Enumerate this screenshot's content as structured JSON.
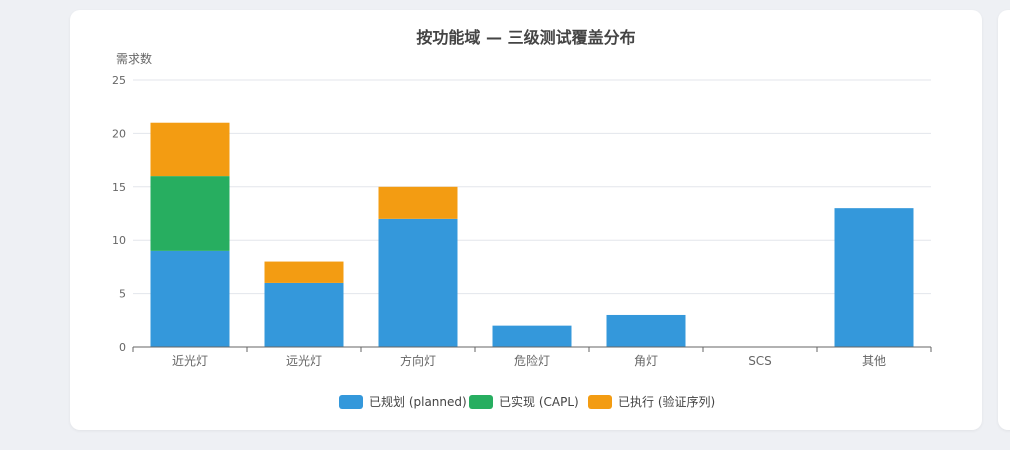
{
  "chart_data": {
    "type": "bar",
    "stacked": true,
    "title": "按功能域 — 三级测试覆盖分布",
    "ylabel": "需求数",
    "xlabel": "",
    "ylim": [
      0,
      25
    ],
    "yticks": [
      0,
      5,
      10,
      15,
      20,
      25
    ],
    "grid": true,
    "legend_position": "bottom",
    "categories": [
      "近光灯",
      "远光灯",
      "方向灯",
      "危险灯",
      "角灯",
      "SCS",
      "其他"
    ],
    "series": [
      {
        "name": "已规划 (planned)",
        "color": "#3498db",
        "values": [
          9,
          6,
          12,
          2,
          3,
          0,
          13
        ]
      },
      {
        "name": "已实现 (CAPL)",
        "color": "#27ae60",
        "values": [
          7,
          0,
          0,
          0,
          0,
          0,
          0
        ]
      },
      {
        "name": "已执行 (验证序列)",
        "color": "#f39c12",
        "values": [
          5,
          2,
          3,
          0,
          0,
          0,
          0
        ]
      }
    ]
  }
}
